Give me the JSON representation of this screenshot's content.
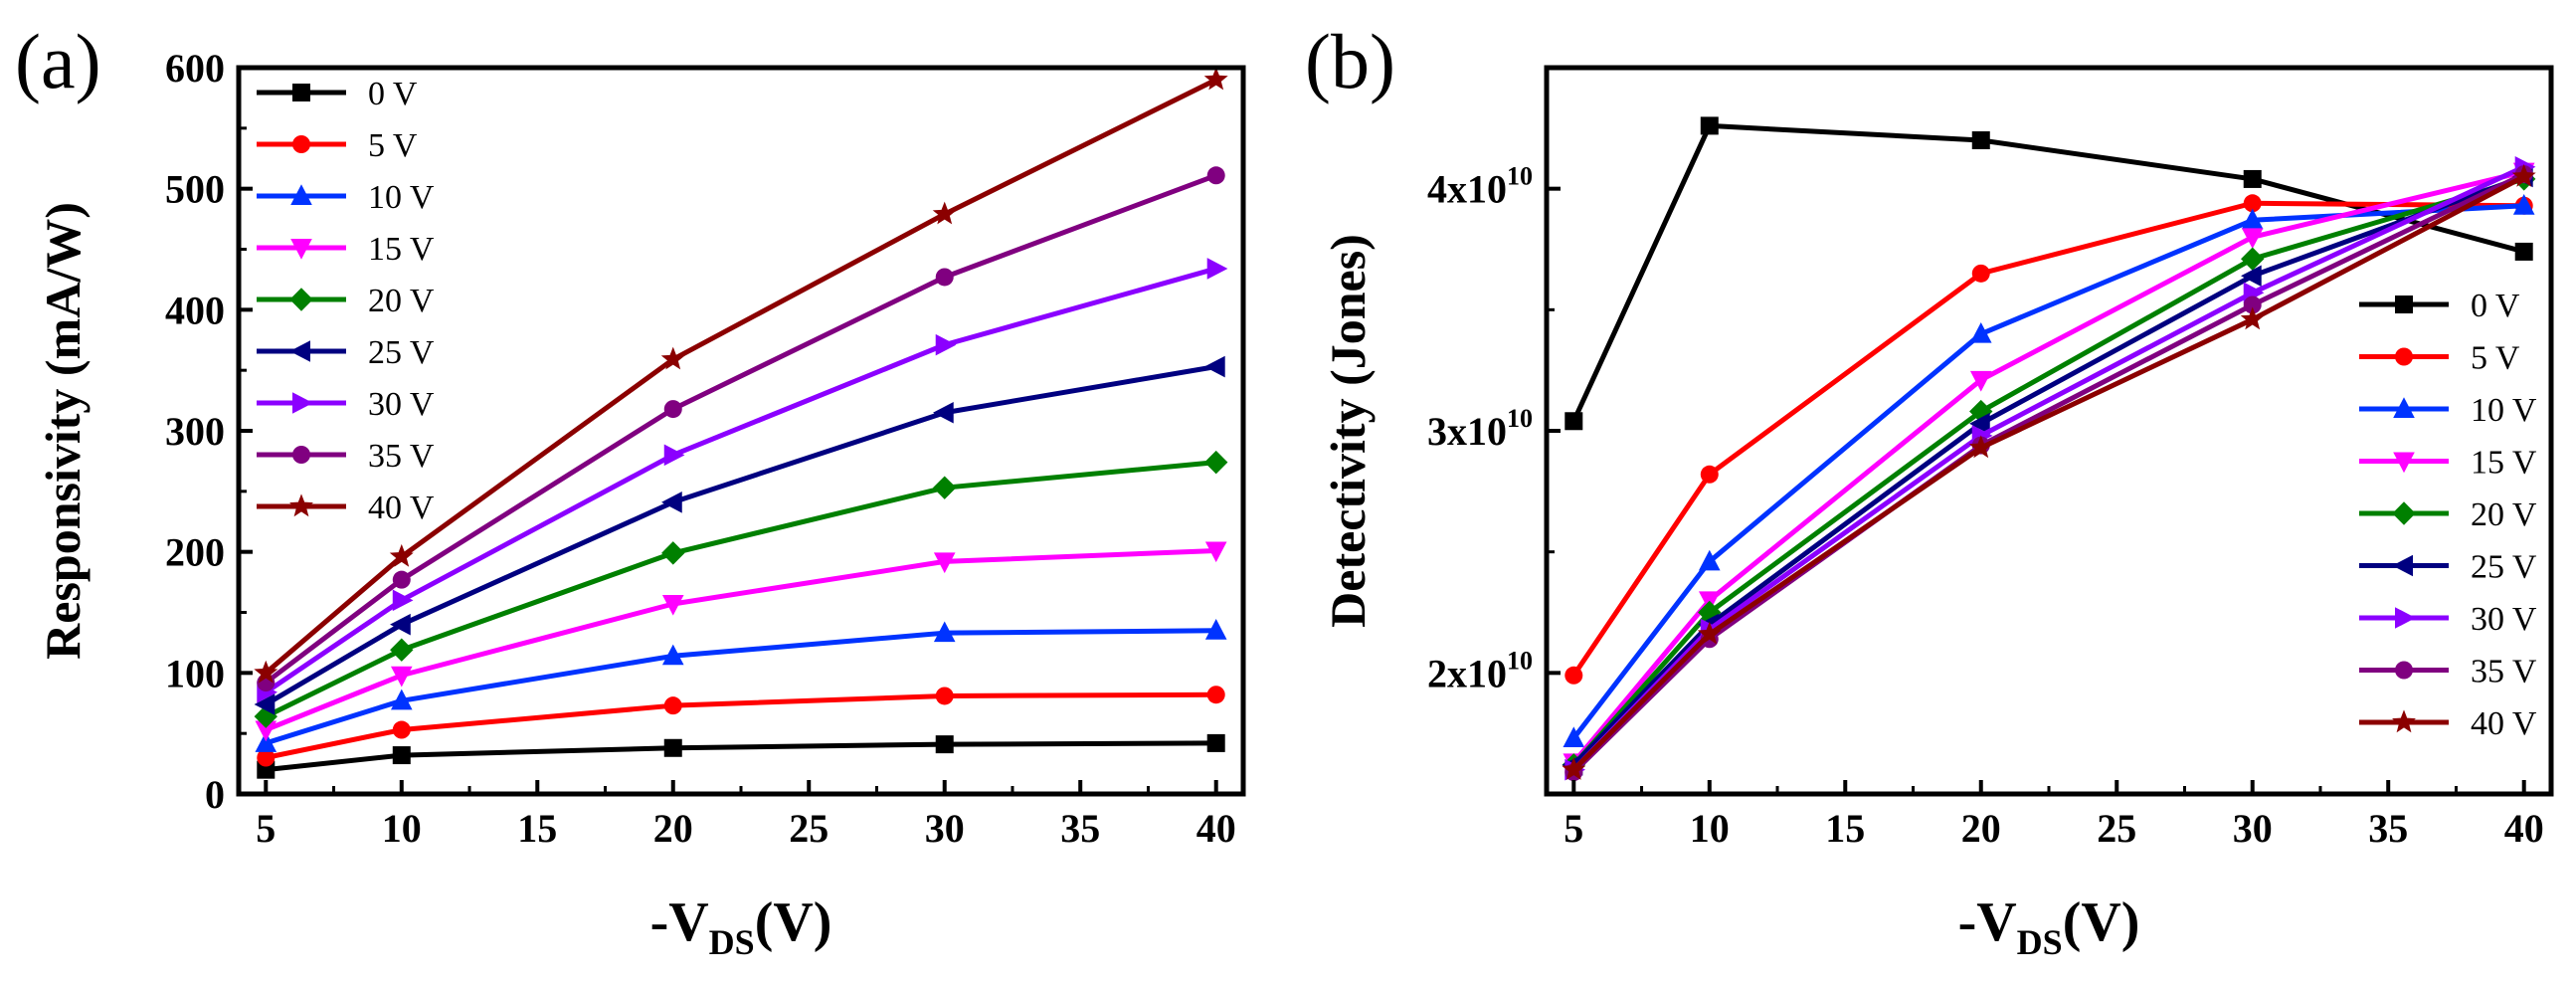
{
  "series_colors": [
    "#000000",
    "#ff0000",
    "#0033ff",
    "#ff00ff",
    "#008000",
    "#000080",
    "#8b00ff",
    "#800080",
    "#8b0000"
  ],
  "series_markers": [
    "square",
    "circle",
    "triangle-up",
    "triangle-down",
    "diamond",
    "triangle-left",
    "triangle-right",
    "circle",
    "star"
  ],
  "chart_data": [
    {
      "type": "line",
      "panel_label": "(a)",
      "title": "",
      "xlabel": {
        "main": "-V",
        "sub": "DS",
        "unit": "(V)"
      },
      "ylabel": "Responsivity (mA/W)",
      "x": [
        5,
        10,
        20,
        30,
        40
      ],
      "xlim": [
        4,
        41
      ],
      "ylim": [
        0,
        600
      ],
      "xticks": [
        5,
        10,
        15,
        20,
        25,
        30,
        35,
        40
      ],
      "yticks": [
        0,
        100,
        200,
        300,
        400,
        500,
        600
      ],
      "ytick_labels": [
        "0",
        "100",
        "200",
        "300",
        "400",
        "500",
        "600"
      ],
      "legend_position": "top-left",
      "series": [
        {
          "name": "0 V",
          "values": [
            20,
            32,
            38,
            41,
            42
          ]
        },
        {
          "name": "5 V",
          "values": [
            30,
            53,
            73,
            81,
            82
          ]
        },
        {
          "name": "10 V",
          "values": [
            42,
            77,
            114,
            133,
            135
          ]
        },
        {
          "name": "15 V",
          "values": [
            53,
            98,
            157,
            192,
            201
          ]
        },
        {
          "name": "20 V",
          "values": [
            64,
            119,
            199,
            253,
            274
          ]
        },
        {
          "name": "25 V",
          "values": [
            74,
            140,
            241,
            315,
            353
          ]
        },
        {
          "name": "30 V",
          "values": [
            84,
            160,
            280,
            371,
            434
          ]
        },
        {
          "name": "35 V",
          "values": [
            92,
            177,
            318,
            427,
            511
          ]
        },
        {
          "name": "40 V",
          "values": [
            100,
            196,
            359,
            479,
            590
          ]
        }
      ]
    },
    {
      "type": "line",
      "panel_label": "(b)",
      "title": "",
      "xlabel": {
        "main": "-V",
        "sub": "DS",
        "unit": "(V)"
      },
      "ylabel": "Detectivity (Jones)",
      "x": [
        5,
        10,
        20,
        30,
        40
      ],
      "xlim": [
        4,
        41
      ],
      "ylim": [
        1.5,
        4.5
      ],
      "y_unit_note": "values in units of 1e10 Jones",
      "xticks": [
        5,
        10,
        15,
        20,
        25,
        30,
        35,
        40
      ],
      "yticks": [
        2,
        3,
        4
      ],
      "ytick_labels": [
        {
          "base": "2x10",
          "exp": "10"
        },
        {
          "base": "3x10",
          "exp": "10"
        },
        {
          "base": "4x10",
          "exp": "10"
        }
      ],
      "legend_position": "right",
      "series": [
        {
          "name": "0 V",
          "values": [
            3.04,
            4.26,
            4.2,
            4.04,
            3.74
          ]
        },
        {
          "name": "5 V",
          "values": [
            1.99,
            2.82,
            3.65,
            3.94,
            3.93
          ]
        },
        {
          "name": "10 V",
          "values": [
            1.73,
            2.46,
            3.4,
            3.87,
            3.93
          ]
        },
        {
          "name": "15 V",
          "values": [
            1.63,
            2.3,
            3.21,
            3.8,
            4.07
          ]
        },
        {
          "name": "20 V",
          "values": [
            1.62,
            2.25,
            3.08,
            3.71,
            4.04
          ]
        },
        {
          "name": "25 V",
          "values": [
            1.62,
            2.2,
            3.03,
            3.64,
            4.05
          ]
        },
        {
          "name": "30 V",
          "values": [
            1.6,
            2.18,
            2.98,
            3.57,
            4.09
          ]
        },
        {
          "name": "35 V",
          "values": [
            1.59,
            2.14,
            2.94,
            3.52,
            4.06
          ]
        },
        {
          "name": "40 V",
          "values": [
            1.6,
            2.16,
            2.93,
            3.46,
            4.05
          ]
        }
      ]
    }
  ]
}
